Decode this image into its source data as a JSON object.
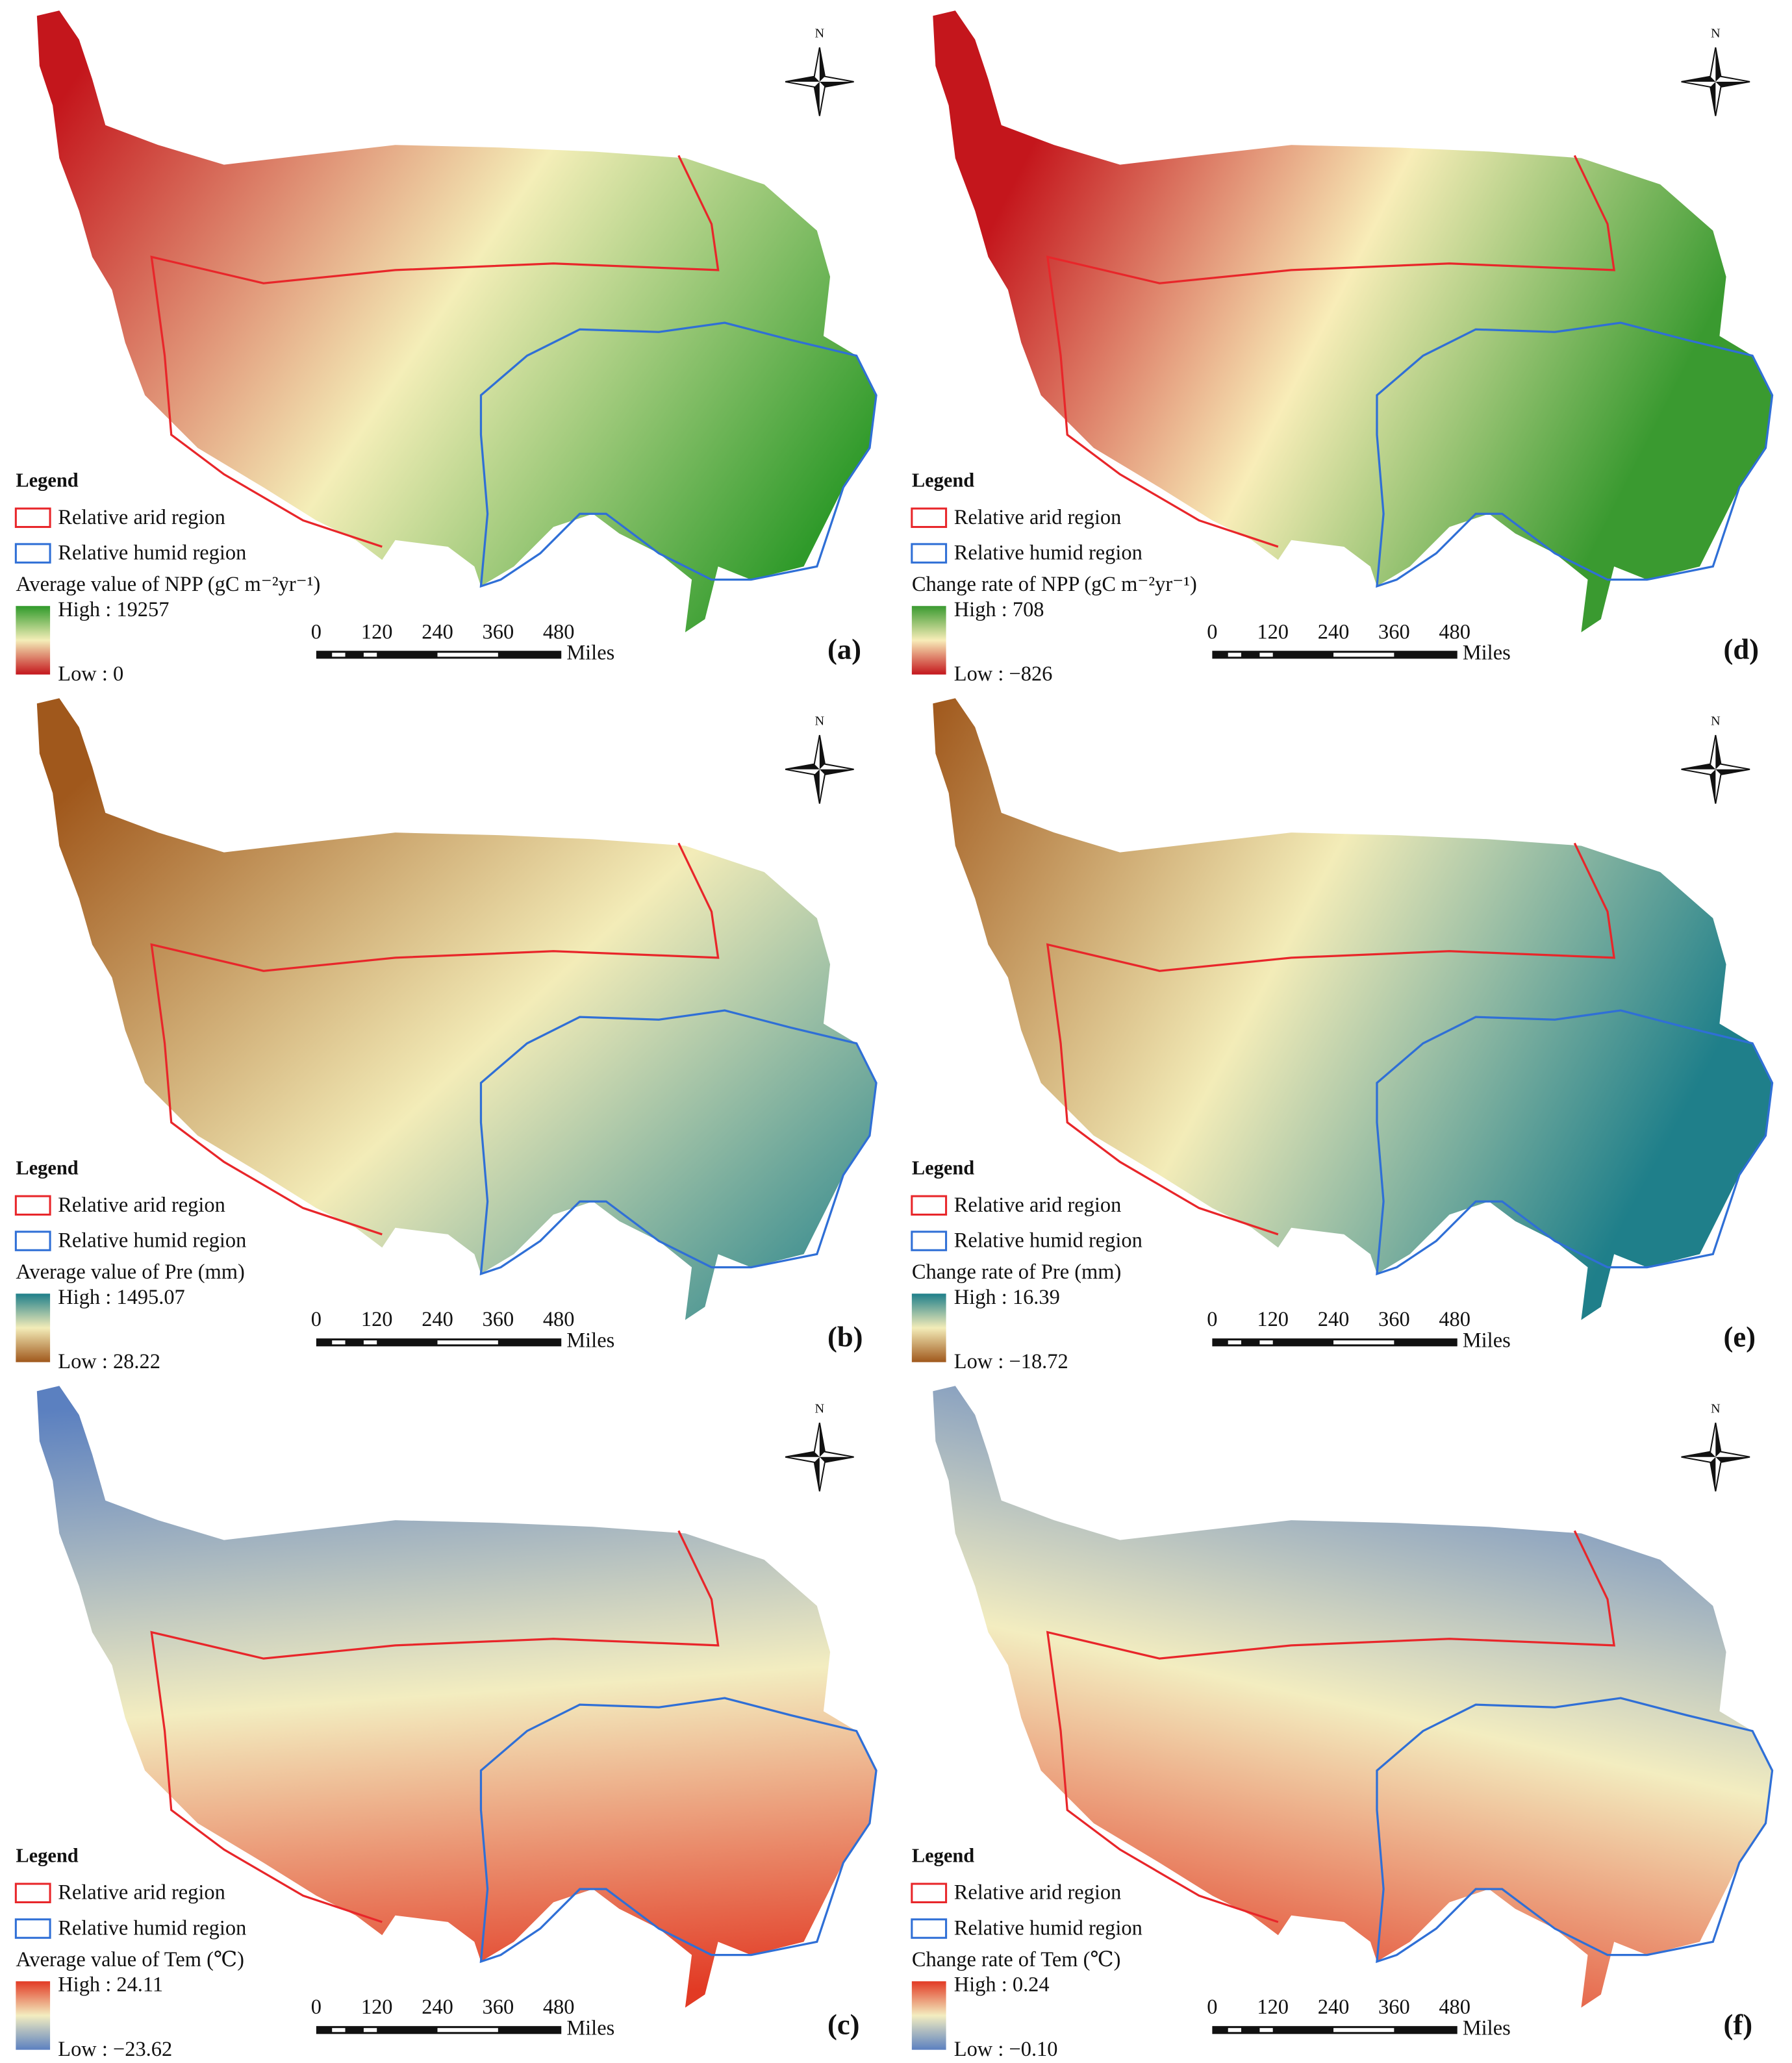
{
  "panels": [
    {
      "label": "(a)",
      "legend_title": "Legend",
      "arid": "Relative arid region",
      "humid": "Relative humid region",
      "variable": "Average value of NPP (gC m⁻²yr⁻¹)",
      "high": "High : 19257",
      "low": "Low : 0",
      "scale_labels": [
        "0",
        "120",
        "240",
        "360",
        "480"
      ],
      "unit": "Miles",
      "north": "N",
      "colors": [
        "#2f9a2a",
        "#f4eeb8",
        "#c4161c"
      ]
    },
    {
      "label": "(d)",
      "legend_title": "Legend",
      "arid": "Relative arid region",
      "humid": "Relative humid region",
      "variable": "Change rate of NPP (gC m⁻²yr⁻¹)",
      "high": "High : 708",
      "low": "Low : −826",
      "scale_labels": [
        "0",
        "120",
        "240",
        "360",
        "480"
      ],
      "unit": "Miles",
      "north": "N",
      "colors": [
        "#3a9a30",
        "#f8edb8",
        "#c4161c"
      ]
    },
    {
      "label": "(b)",
      "legend_title": "Legend",
      "arid": "Relative arid region",
      "humid": "Relative humid region",
      "variable": "Average value of Pre (mm)",
      "high": "High : 1495.07",
      "low": "Low : 28.22",
      "scale_labels": [
        "0",
        "120",
        "240",
        "360",
        "480"
      ],
      "unit": "Miles",
      "north": "N",
      "colors": [
        "#1f7f8a",
        "#f3ecb8",
        "#a0581c"
      ]
    },
    {
      "label": "(e)",
      "legend_title": "Legend",
      "arid": "Relative arid region",
      "humid": "Relative humid region",
      "variable": "Change rate of Pre (mm)",
      "high": "High : 16.39",
      "low": "Low : −18.72",
      "scale_labels": [
        "0",
        "120",
        "240",
        "360",
        "480"
      ],
      "unit": "Miles",
      "north": "N",
      "colors": [
        "#1f7f8a",
        "#f3ecb8",
        "#a0581c"
      ]
    },
    {
      "label": "(c)",
      "legend_title": "Legend",
      "arid": "Relative arid region",
      "humid": "Relative humid region",
      "variable": "Average value of Tem (℃)",
      "high": "High : 24.11",
      "low": "Low : −23.62",
      "scale_labels": [
        "0",
        "120",
        "240",
        "360",
        "480"
      ],
      "unit": "Miles",
      "north": "N",
      "colors": [
        "#e23a24",
        "#f3edc0",
        "#5b80c0"
      ]
    },
    {
      "label": "(f)",
      "legend_title": "Legend",
      "arid": "Relative arid region",
      "humid": "Relative humid region",
      "variable": "Change rate of Tem (℃)",
      "high": "High : 0.24",
      "low": "Low : −0.10",
      "scale_labels": [
        "0",
        "120",
        "240",
        "360",
        "480"
      ],
      "unit": "Miles",
      "north": "N",
      "colors": [
        "#e23a24",
        "#f3edc0",
        "#5b80c0"
      ]
    }
  ]
}
